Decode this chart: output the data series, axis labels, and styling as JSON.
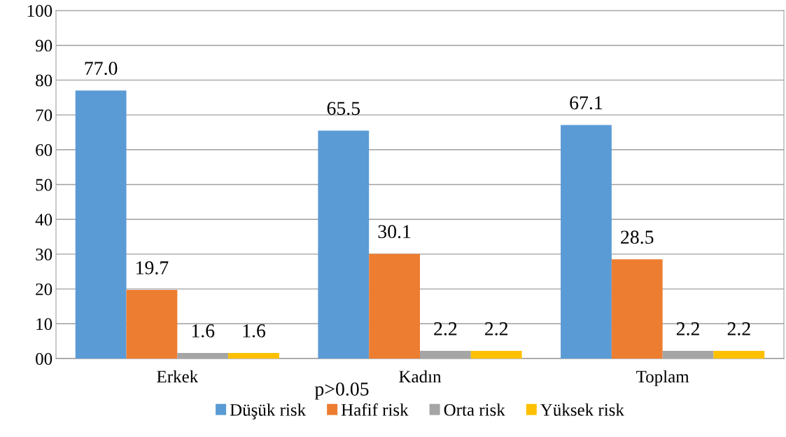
{
  "chart_data": {
    "type": "bar",
    "categories": [
      "Erkek",
      "Kadın",
      "Toplam"
    ],
    "series": [
      {
        "name": "Düşük risk",
        "color": "#5b9bd5",
        "values": [
          77.0,
          65.5,
          67.1
        ],
        "value_labels": [
          "77.0",
          "65.5",
          "67.1"
        ]
      },
      {
        "name": "Hafif risk",
        "color": "#ed7d31",
        "values": [
          19.7,
          30.1,
          28.5
        ],
        "value_labels": [
          "19.7",
          "30.1",
          "28.5"
        ]
      },
      {
        "name": "Orta risk",
        "color": "#a5a5a5",
        "values": [
          1.6,
          2.2,
          2.2
        ],
        "value_labels": [
          "1.6",
          "2.2",
          "2.2"
        ]
      },
      {
        "name": "Yüksek risk",
        "color": "#ffc000",
        "values": [
          1.6,
          2.2,
          2.2
        ],
        "value_labels": [
          "1.6",
          "2.2",
          "2.2"
        ]
      }
    ],
    "ylim": [
      0,
      100
    ],
    "yticks": [
      {
        "value": 0,
        "label": "00"
      },
      10,
      20,
      30,
      40,
      50,
      60,
      70,
      80,
      90,
      100
    ],
    "grid": "y",
    "legend": "bottom",
    "annotations": [
      "p>0.05"
    ]
  }
}
